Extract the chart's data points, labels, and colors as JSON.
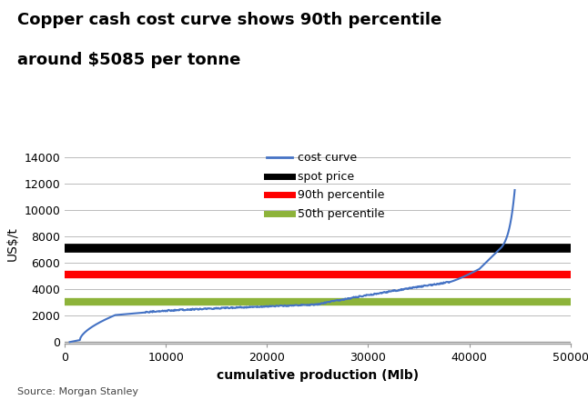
{
  "title_line1": "Copper cash cost curve shows 90th percentile",
  "title_line2": "around $5085 per tonne",
  "xlabel": "cumulative production (Mlb)",
  "ylabel": "US$/t",
  "source": "Source: Morgan Stanley",
  "spot_price": 7100,
  "percentile_90": 5085,
  "percentile_50": 3000,
  "xlim": [
    0,
    50000
  ],
  "ylim": [
    -200,
    15000
  ],
  "yticks": [
    0,
    2000,
    4000,
    6000,
    8000,
    10000,
    12000,
    14000
  ],
  "xticks": [
    0,
    10000,
    20000,
    30000,
    40000,
    50000
  ],
  "cost_curve_color": "#4472C4",
  "spot_price_color": "#000000",
  "percentile_90_color": "#FF0000",
  "percentile_50_color": "#8DB33A",
  "background_color": "#FFFFFF",
  "grid_color": "#BBBBBB",
  "title_fontsize": 13,
  "axis_label_fontsize": 10,
  "tick_fontsize": 9,
  "legend_fontsize": 9,
  "source_fontsize": 8,
  "spot_linewidth": 7,
  "percentile_linewidth": 6,
  "curve_linewidth": 1.5
}
